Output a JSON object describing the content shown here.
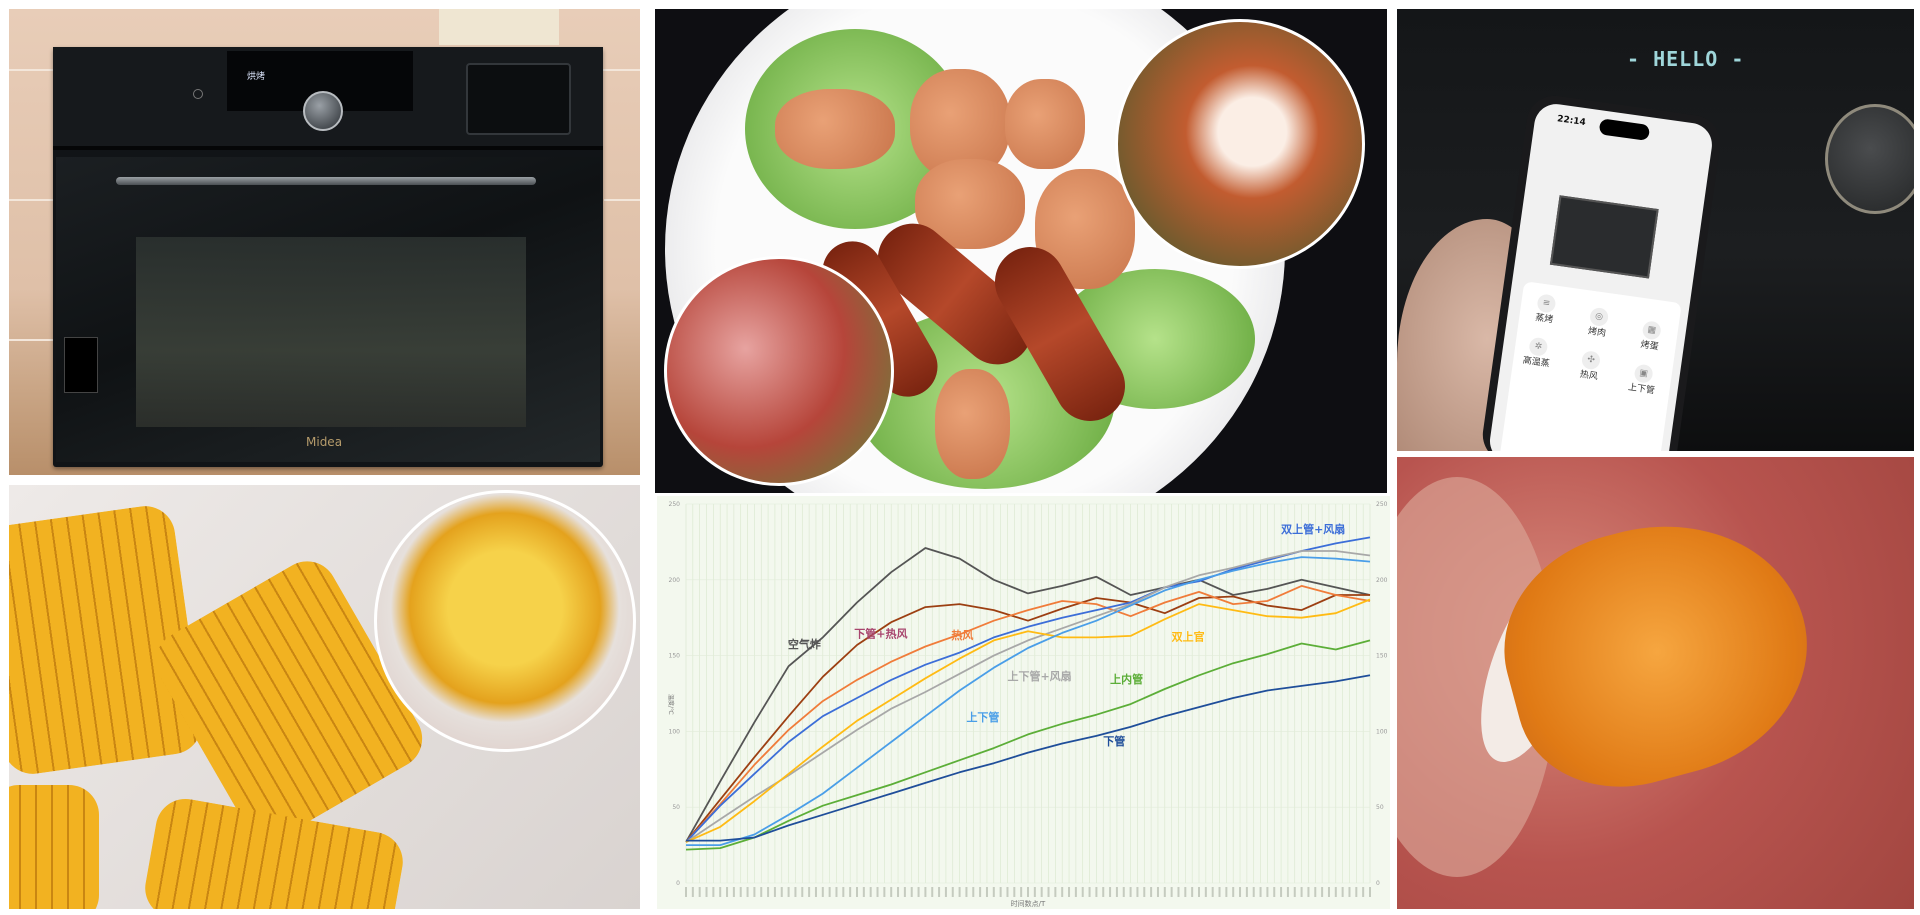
{
  "oven_photo": {
    "display_text": "烘烤",
    "brand_logo": "Midea"
  },
  "phone_photo": {
    "oven_display": "- HELLO -",
    "phone_time": "22:14",
    "functions": [
      "蒸烤",
      "烤肉",
      "烤蛋",
      "高温蒸",
      "热风",
      "上下管"
    ]
  },
  "chart_data": {
    "type": "line",
    "title": "",
    "xlabel": "时间数点/T",
    "ylabel": "温度/℃",
    "x_unit_note": "",
    "ylim": [
      0,
      250
    ],
    "yticks": [
      0,
      50,
      100,
      150,
      200,
      250
    ],
    "secondary_y_axis": true,
    "grid": "vertical gridlines on",
    "legend": "inline labels",
    "x": [
      0,
      5,
      10,
      15,
      20,
      25,
      30,
      35,
      40,
      45,
      50,
      55,
      60,
      65,
      70,
      75,
      80,
      85,
      90,
      95,
      100
    ],
    "series": [
      {
        "name": "空气炸",
        "color": "#555555",
        "values": [
          27,
          67,
          106,
          143,
          162,
          185,
          205,
          221,
          214,
          200,
          191,
          196,
          202,
          190,
          195,
          200,
          190,
          194,
          200,
          195,
          190
        ]
      },
      {
        "name": "下管+热风",
        "color": "#9c3f12",
        "values": [
          27,
          55,
          83,
          110,
          136,
          157,
          172,
          182,
          184,
          180,
          173,
          181,
          188,
          185,
          178,
          188,
          189,
          183,
          180,
          190,
          190
        ]
      },
      {
        "name": "热风",
        "color": "#f07c3a",
        "values": [
          27,
          52,
          78,
          101,
          120,
          134,
          146,
          156,
          164,
          173,
          180,
          186,
          184,
          176,
          185,
          192,
          184,
          186,
          196,
          190,
          186
        ]
      },
      {
        "name": "双上管+风扇",
        "color": "#3c6ed8",
        "values": [
          27,
          51,
          72,
          93,
          110,
          122,
          134,
          144,
          152,
          162,
          169,
          175,
          180,
          185,
          195,
          199,
          207,
          213,
          219,
          224,
          228
        ]
      },
      {
        "name": "上下管+风扇",
        "color": "#a8a8a8",
        "values": [
          27,
          42,
          57,
          71,
          86,
          101,
          115,
          126,
          138,
          150,
          160,
          168,
          176,
          184,
          195,
          203,
          208,
          214,
          219,
          219,
          216
        ]
      },
      {
        "name": "双上官",
        "color": "#ffbb14",
        "values": [
          27,
          37,
          54,
          72,
          90,
          107,
          121,
          135,
          148,
          160,
          166,
          162,
          162,
          163,
          174,
          184,
          180,
          176,
          175,
          178,
          187
        ]
      },
      {
        "name": "上下管",
        "color": "#4a9ee8",
        "values": [
          25,
          25,
          32,
          45,
          59,
          76,
          93,
          110,
          127,
          142,
          155,
          165,
          173,
          183,
          193,
          200,
          206,
          211,
          215,
          214,
          212
        ]
      },
      {
        "name": "上内管",
        "color": "#5cae38",
        "values": [
          22,
          23,
          30,
          41,
          51,
          58,
          65,
          73,
          81,
          89,
          98,
          105,
          111,
          118,
          128,
          137,
          145,
          151,
          158,
          154,
          160
        ]
      },
      {
        "name": "下管",
        "color": "#1f4e9a",
        "values": [
          28,
          28,
          30,
          38,
          45,
          52,
          59,
          66,
          73,
          79,
          86,
          92,
          97,
          103,
          110,
          116,
          122,
          127,
          130,
          133,
          137
        ]
      }
    ]
  }
}
